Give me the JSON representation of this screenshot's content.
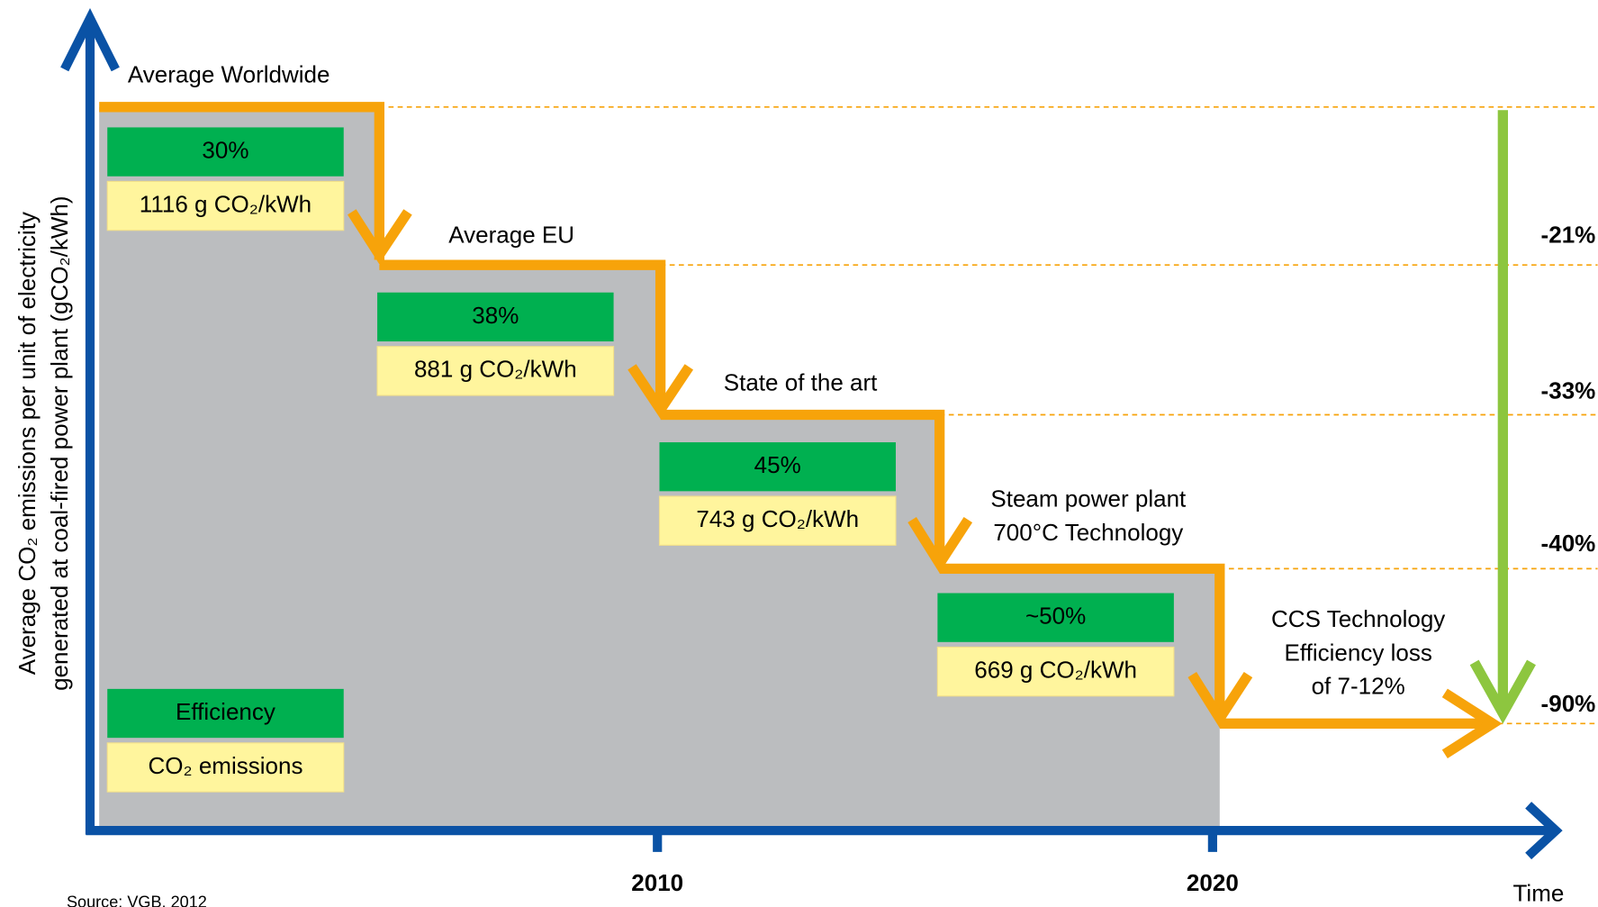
{
  "y_axis_label": [
    "Average CO₂ emissions per unit of electricity",
    "generated at coal-fired power plant (gCO₂/kWh)"
  ],
  "steps": [
    {
      "label": [
        "Average Worldwide"
      ],
      "efficiency": "30%",
      "emissions": "1116 g CO₂/kWh"
    },
    {
      "label": [
        "Average EU"
      ],
      "efficiency": "38%",
      "emissions": "881 g CO₂/kWh"
    },
    {
      "label": [
        "State of the art"
      ],
      "efficiency": "45%",
      "emissions": "743 g CO₂/kWh"
    },
    {
      "label": [
        "Steam power plant",
        "700°C Technology"
      ],
      "efficiency": "~50%",
      "emissions": "669 g CO₂/kWh"
    },
    {
      "label": [
        "CCS Technology",
        "Efficiency loss",
        "of 7-12%"
      ]
    }
  ],
  "reductions": [
    "-21%",
    "-33%",
    "-40%",
    "-90%"
  ],
  "x_labels": [
    "2010",
    "2020"
  ],
  "x_axis_label": "Time",
  "legend": {
    "efficiency": "Efficiency",
    "emissions": "CO₂ emissions"
  },
  "source": "Source: VGB, 2012"
}
